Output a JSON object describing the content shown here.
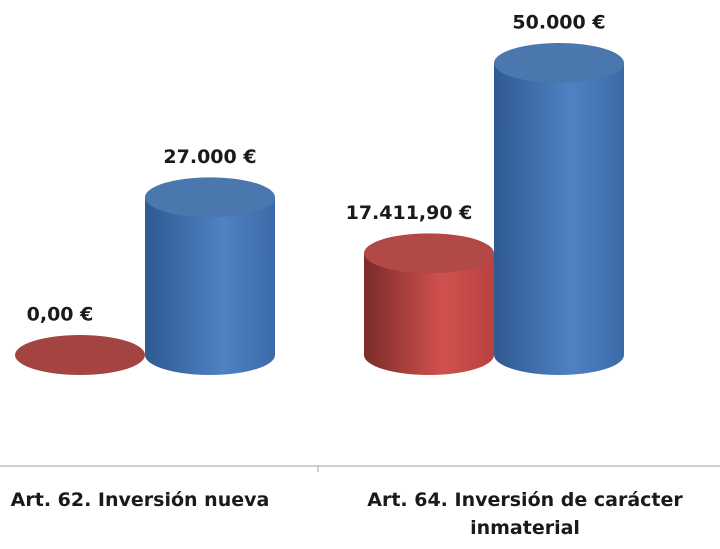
{
  "chart_data": {
    "type": "cylinder-bar",
    "categories": [
      "Art. 62. Inversión nueva",
      "Art. 64. Inversión de carácter inmaterial"
    ],
    "series": [
      {
        "color": "#c0504d",
        "values": [
          0,
          17411.9
        ],
        "value_labels": [
          "0,00 €",
          "17.411,90 €"
        ]
      },
      {
        "color": "#4f81bd",
        "values": [
          27000,
          50000
        ],
        "value_labels": [
          "27.000 €",
          "50.000 €"
        ]
      }
    ],
    "ylim": [
      0,
      50000
    ]
  }
}
